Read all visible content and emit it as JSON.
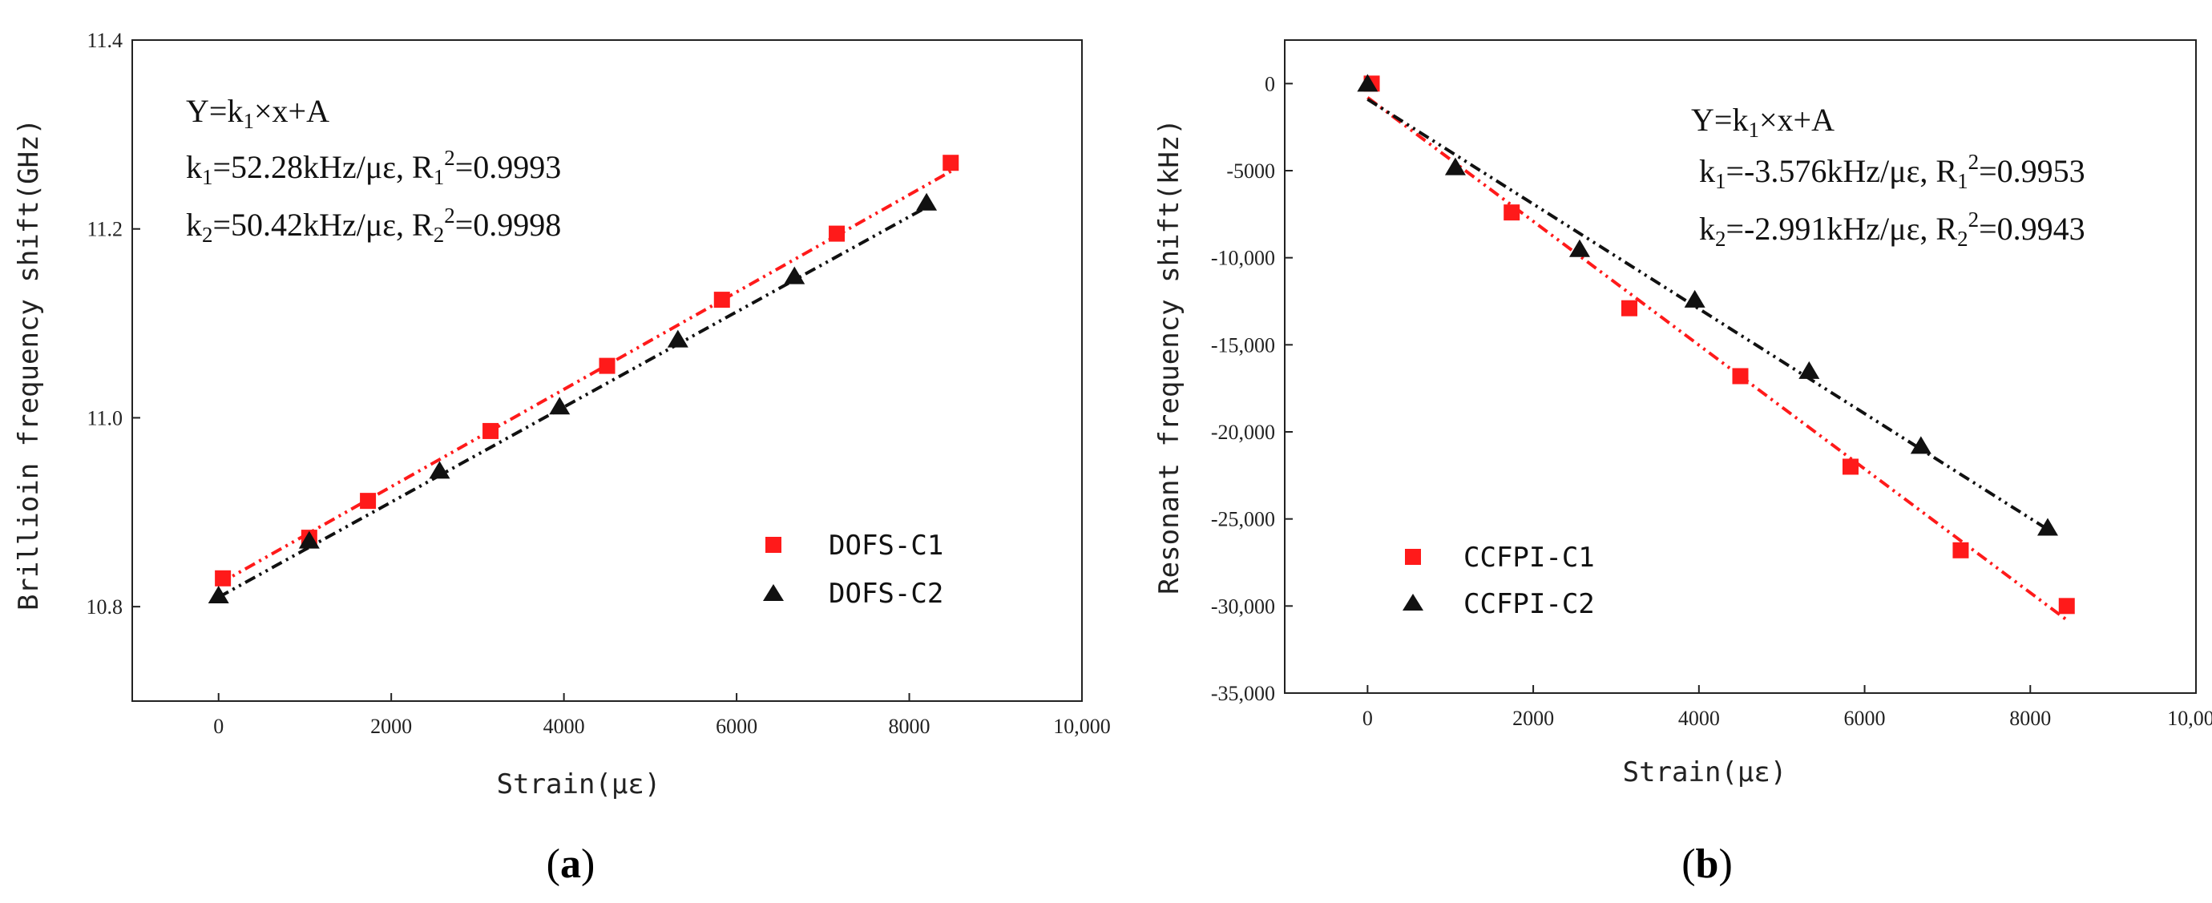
{
  "chart_data": [
    {
      "type": "scatter",
      "panel_label": "(a)",
      "title": "",
      "xlabel": "Strain(με)",
      "ylabel": "Brillioin frequency shift(GHz)",
      "xlim": [
        -1000,
        10000
      ],
      "ylim": [
        10.7,
        11.4
      ],
      "xticks": [
        0,
        2000,
        4000,
        6000,
        8000,
        10000
      ],
      "xtick_labels": [
        "0",
        "2000",
        "4000",
        "6000",
        "8000",
        "10,000"
      ],
      "yticks": [
        10.8,
        11.0,
        11.2,
        11.4
      ],
      "ytick_labels": [
        "10.8",
        "11.0",
        "11.2",
        "11.4"
      ],
      "legend_position": "bottom-right",
      "annotations": {
        "equation": "Y=k1×x+A",
        "fit1": "k1=52.28kHz/με, R1²=0.9993",
        "fit2": "k2=50.42kHz/με, R2²=0.9998"
      },
      "series": [
        {
          "name": "DOFS-C1",
          "color": "#ff1a1a",
          "marker": "square",
          "x": [
            50,
            1050,
            1730,
            3150,
            4500,
            5830,
            7160,
            8480
          ],
          "y": [
            10.83,
            10.873,
            10.912,
            10.986,
            11.055,
            11.125,
            11.195,
            11.27
          ],
          "fit": {
            "x": [
              0,
              8500
            ],
            "y": [
              10.824,
              11.262
            ]
          }
        },
        {
          "name": "DOFS-C2",
          "color": "#111111",
          "marker": "triangle",
          "x": [
            0,
            1050,
            2560,
            3950,
            5320,
            6670,
            8200
          ],
          "y": [
            10.812,
            10.87,
            10.944,
            11.012,
            11.083,
            11.15,
            11.228
          ],
          "fit": {
            "x": [
              0,
              8200
            ],
            "y": [
              10.81,
              11.223
            ]
          }
        }
      ]
    },
    {
      "type": "scatter",
      "panel_label": "(b)",
      "title": "",
      "xlabel": "Strain(με)",
      "ylabel": "Resonant frequency shift(kHz)",
      "xlim": [
        -1000,
        10000
      ],
      "ylim": [
        -35000,
        2500
      ],
      "xticks": [
        0,
        2000,
        4000,
        6000,
        8000,
        10000
      ],
      "xtick_labels": [
        "0",
        "2000",
        "4000",
        "6000",
        "8000",
        "10,000"
      ],
      "yticks": [
        0,
        -5000,
        -10000,
        -15000,
        -20000,
        -25000,
        -30000,
        -35000
      ],
      "ytick_labels": [
        "0",
        "-5000",
        "-10,000",
        "-15,000",
        "-20,000",
        "-25,000",
        "-30,000",
        "-35,000"
      ],
      "legend_position": "bottom-left",
      "annotations": {
        "equation": "Y=k1×x+A",
        "fit1": "k1=-3.576kHz/με, R1²=0.9953",
        "fit2": "k2=-2.991kHz/με, R2²=0.9943"
      },
      "series": [
        {
          "name": "CCFPI-C1",
          "color": "#ff1a1a",
          "marker": "square",
          "x": [
            50,
            1740,
            3160,
            4500,
            5830,
            7160,
            8440
          ],
          "y": [
            0,
            -7400,
            -12900,
            -16800,
            -22000,
            -26800,
            -30000
          ],
          "fit": {
            "x": [
              0,
              8440
            ],
            "y": [
              -800,
              -30800
            ]
          }
        },
        {
          "name": "CCFPI-C2",
          "color": "#111111",
          "marker": "triangle",
          "x": [
            0,
            1060,
            2560,
            3950,
            5330,
            6680,
            8210
          ],
          "y": [
            0,
            -4800,
            -9500,
            -12400,
            -16500,
            -20800,
            -25500
          ],
          "fit": {
            "x": [
              0,
              8210
            ],
            "y": [
              -900,
              -25600
            ]
          }
        }
      ]
    }
  ]
}
